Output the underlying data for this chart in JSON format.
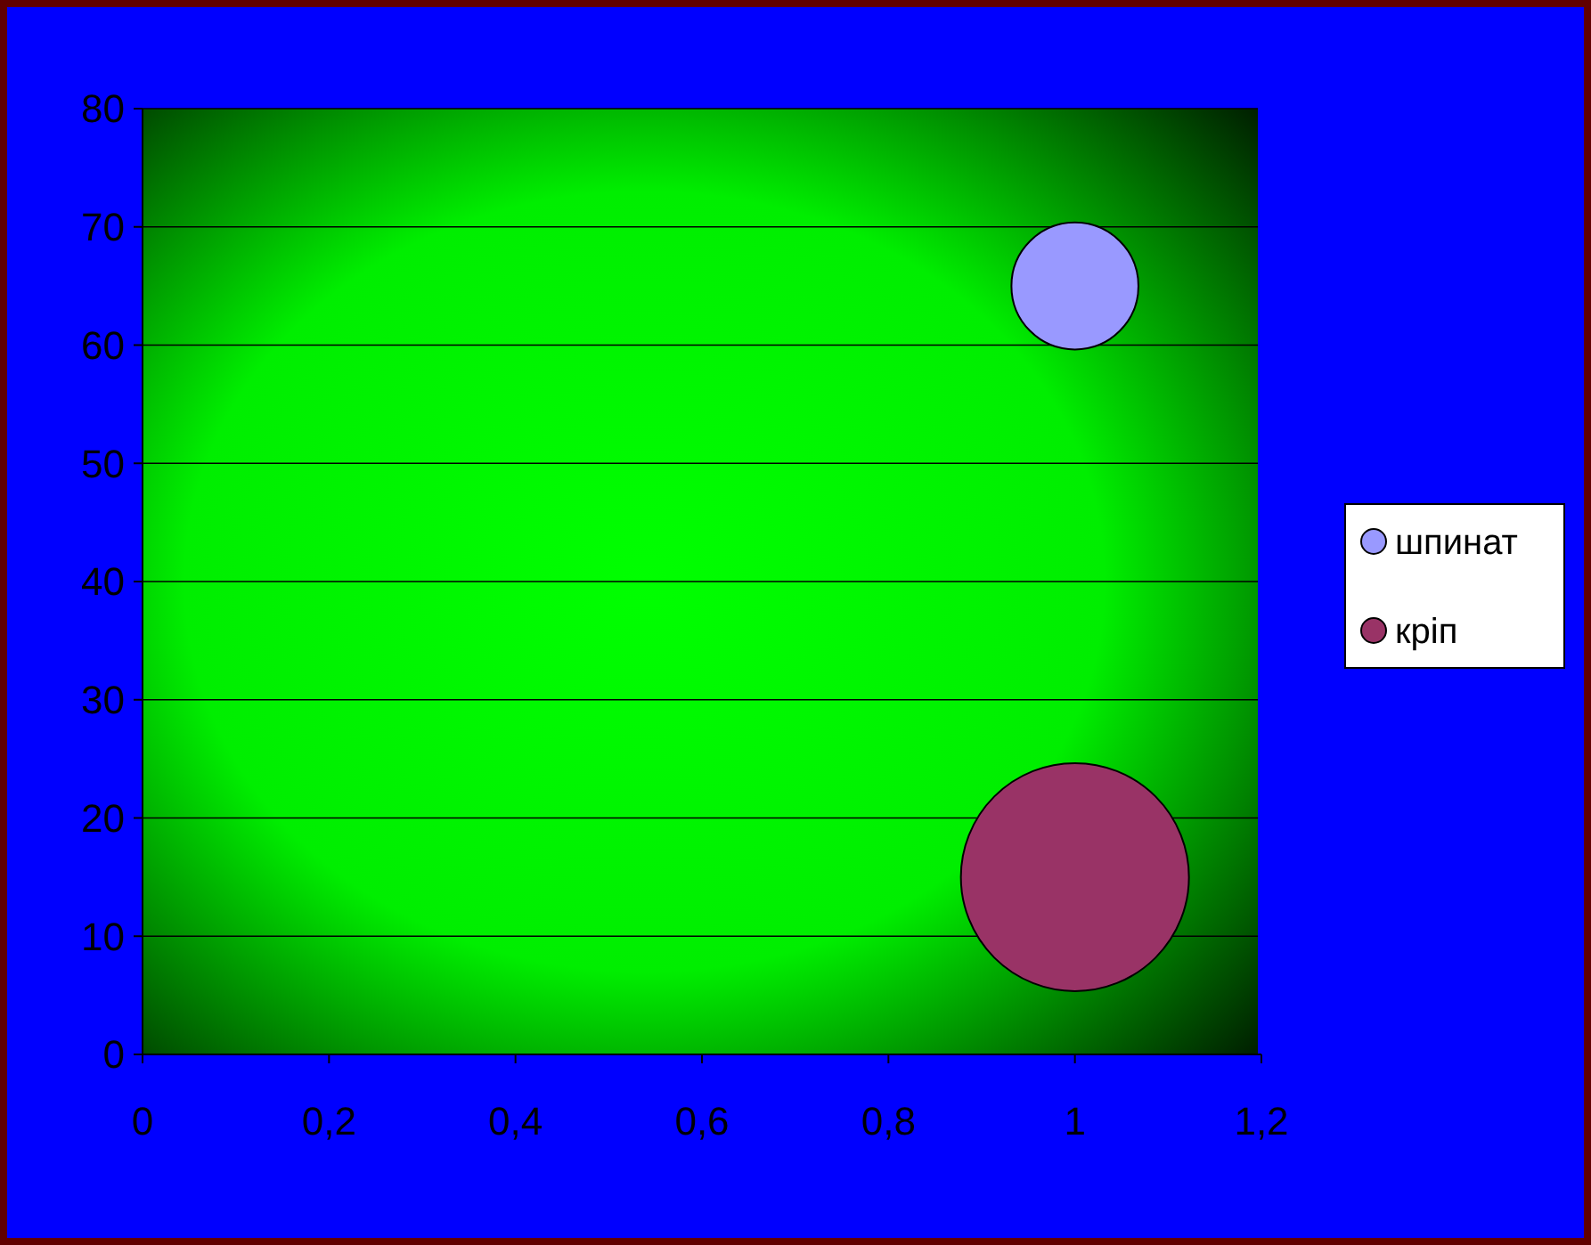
{
  "chart_data": {
    "type": "bubble",
    "xlim": [
      0,
      1.2
    ],
    "ylim": [
      0,
      80
    ],
    "xticks": [
      0,
      {
        "value": 0.2,
        "label": "0,2"
      },
      {
        "value": 0.4,
        "label": "0,4"
      },
      {
        "value": 0.6,
        "label": "0,6"
      },
      {
        "value": 0.8,
        "label": "0,8"
      },
      1,
      {
        "value": 1.2,
        "label": "1,2"
      }
    ],
    "yticks": [
      0,
      10,
      20,
      30,
      40,
      50,
      60,
      70,
      80
    ],
    "grid": "y",
    "legend": "right",
    "series": [
      {
        "name": "шпинат",
        "color": "#9999ff",
        "x": [
          1
        ],
        "values": [
          65
        ],
        "sizes": [
          0.31
        ]
      },
      {
        "name": "кріп",
        "color": "#993366",
        "x": [
          1
        ],
        "values": [
          15
        ],
        "sizes": [
          1
        ]
      }
    ]
  }
}
